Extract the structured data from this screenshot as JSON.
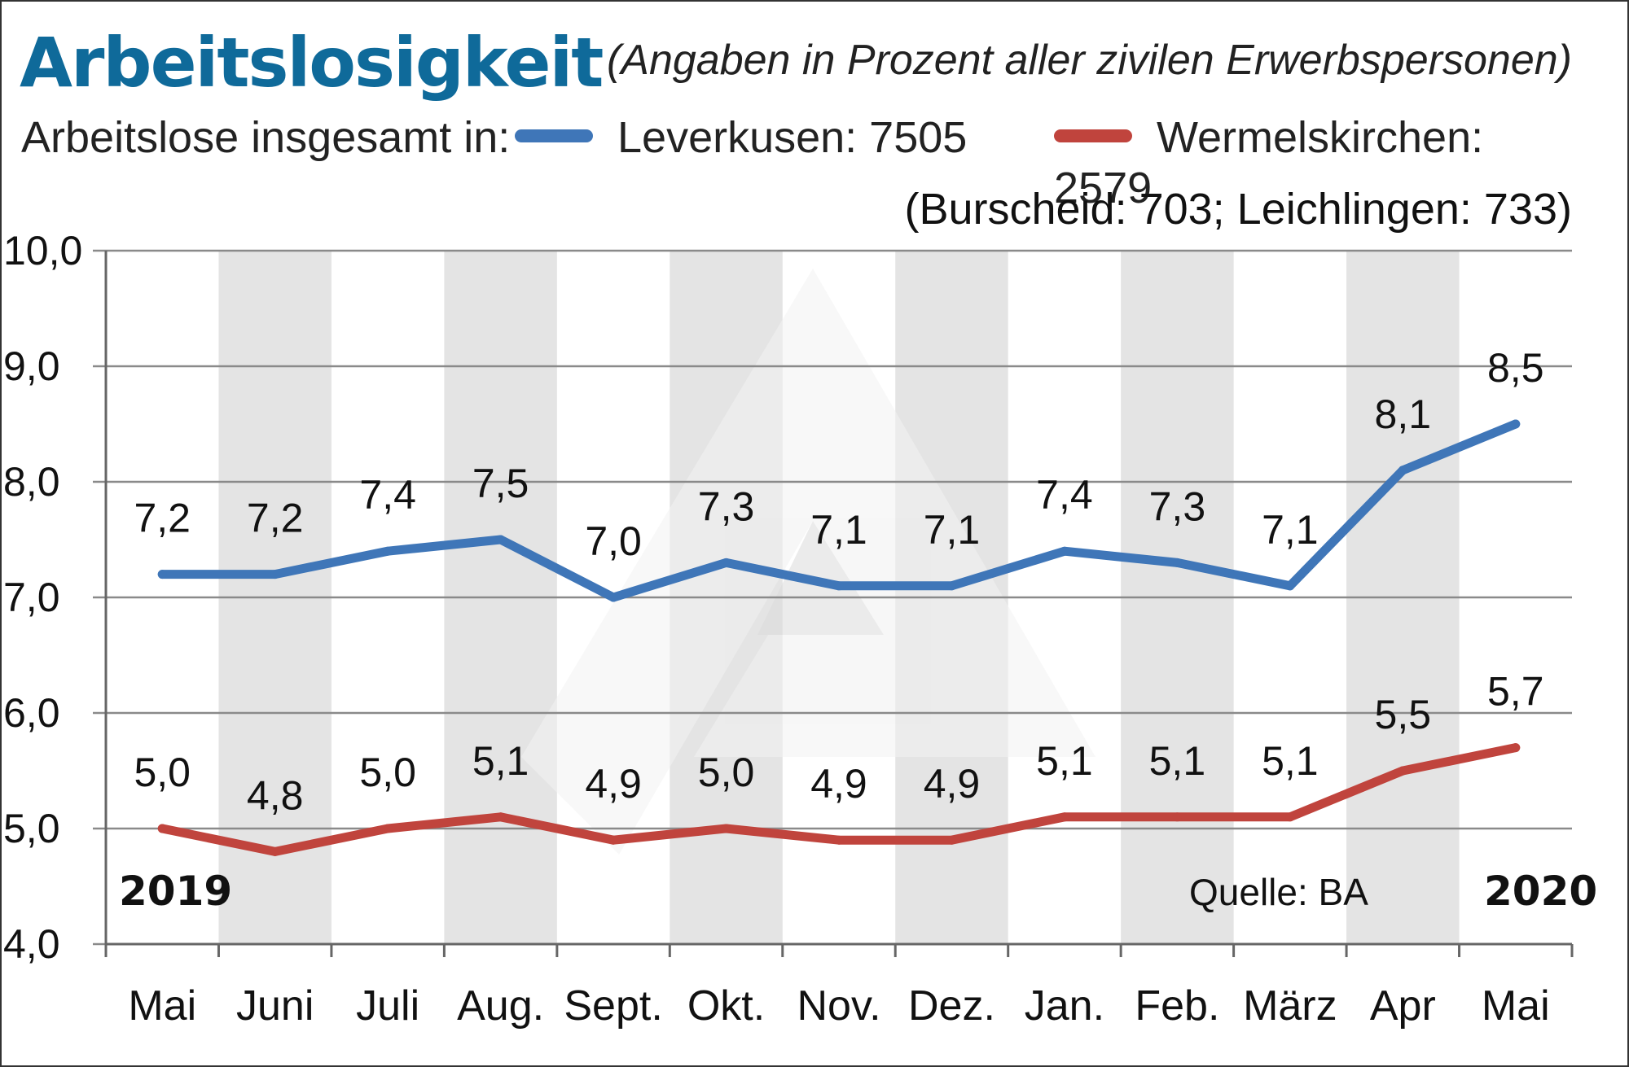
{
  "title": "Arbeitslosigkeit",
  "subtitle": "(Angaben in Prozent aller zivilen Erwerbspersonen)",
  "legend": {
    "prefix": "Arbeitslose insgesamt in:",
    "series_a": "Leverkusen: 7505",
    "series_b": "Wermelskirchen: 2579"
  },
  "note": "(Burscheid: 703; Leichlingen: 733)",
  "colors": {
    "title": "#0f6a9a",
    "leverkusen": "#3f76b8",
    "wermelskirchen": "#c0443d",
    "stripe": "#e4e4e4",
    "grid": "#8a8a8a"
  },
  "chart_data": {
    "type": "line",
    "categories": [
      "Mai",
      "Juni",
      "Juli",
      "Aug.",
      "Sept.",
      "Okt.",
      "Nov.",
      "Dez.",
      "Jan.",
      "Feb.",
      "März",
      "Apr",
      "Mai"
    ],
    "series": [
      {
        "name": "Leverkusen",
        "values": [
          7.2,
          7.2,
          7.4,
          7.5,
          7.0,
          7.3,
          7.1,
          7.1,
          7.4,
          7.3,
          7.1,
          8.1,
          8.5
        ],
        "labels": [
          "7,2",
          "7,2",
          "7,4",
          "7,5",
          "7,0",
          "7,3",
          "7,1",
          "7,1",
          "7,4",
          "7,3",
          "7,1",
          "8,1",
          "8,5"
        ]
      },
      {
        "name": "Wermelskirchen",
        "values": [
          5.0,
          4.8,
          5.0,
          5.1,
          4.9,
          5.0,
          4.9,
          4.9,
          5.1,
          5.1,
          5.1,
          5.5,
          5.7
        ],
        "labels": [
          "5,0",
          "4,8",
          "5,0",
          "5,1",
          "4,9",
          "5,0",
          "4,9",
          "4,9",
          "5,1",
          "5,1",
          "5,1",
          "5,5",
          "5,7"
        ]
      }
    ],
    "yticks": [
      4,
      5,
      6,
      7,
      8,
      9,
      10
    ],
    "ytick_labels": [
      "4,0",
      "5,0",
      "6,0",
      "7,0",
      "8,0",
      "9,0",
      "10,0"
    ],
    "ylim": [
      4,
      10
    ],
    "year_start": "2019",
    "year_end": "2020",
    "source": "Quelle: BA",
    "grid": true
  }
}
